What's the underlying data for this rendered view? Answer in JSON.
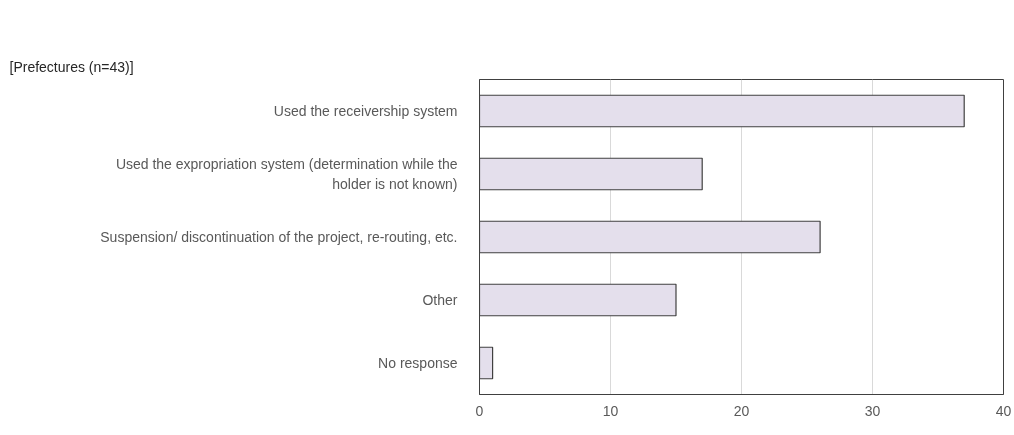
{
  "chart_data": {
    "type": "bar",
    "orientation": "horizontal",
    "title": "[Prefectures (n=43)]",
    "categories": [
      "Used the receivership system",
      "Used the expropriation system (determination while the holder is not known)",
      "Suspension/ discontinuation of the project, re-routing, etc.",
      "Other",
      "No response"
    ],
    "values": [
      37,
      17,
      26,
      15,
      1
    ],
    "color": "#e4dfec",
    "xlim": [
      0,
      40
    ],
    "xticks": [
      0,
      10,
      20,
      30,
      40
    ],
    "grid": "x"
  }
}
